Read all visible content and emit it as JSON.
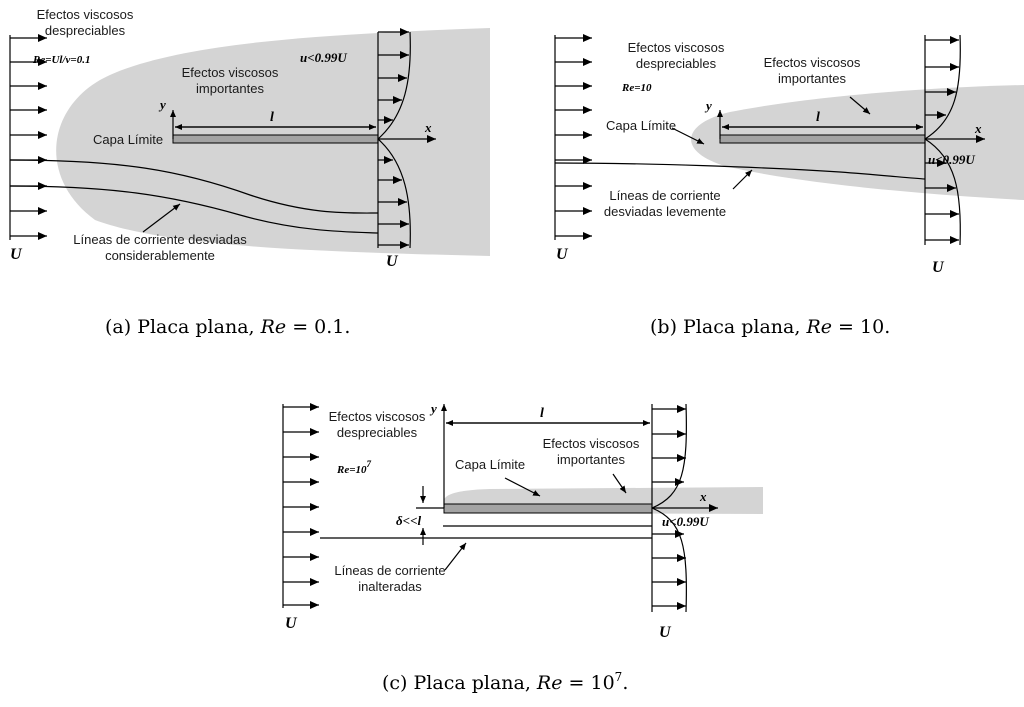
{
  "panel_a": {
    "label_negligible_1": "Efectos viscosos",
    "label_negligible_2": "despreciables",
    "re_text": "Re=Ul/ν=0.1",
    "label_important_1": "Efectos viscosos",
    "label_important_2": "importantes",
    "u_condition": "u<0.99U",
    "boundary_layer": "Capa Límite",
    "streamlines_1": "Líneas de corriente desviadas",
    "streamlines_2": "considerablemente",
    "axis_y": "y",
    "axis_x": "x",
    "length": "l",
    "freestream_left": "U",
    "freestream_right": "U",
    "caption_prefix": "(a) Placa plana,",
    "caption_var": "Re",
    "caption_value": " = 0.1."
  },
  "panel_b": {
    "label_negligible_1": "Efectos viscosos",
    "label_negligible_2": "despreciables",
    "re_text": "Re=10",
    "label_important_1": "Efectos viscosos",
    "label_important_2": "importantes",
    "u_condition": "u<0.99U",
    "boundary_layer": "Capa Límite",
    "streamlines_1": "Líneas de corriente",
    "streamlines_2": "desviadas levemente",
    "axis_y": "y",
    "axis_x": "x",
    "length": "l",
    "freestream_left": "U",
    "freestream_right": "U",
    "caption_prefix": "(b) Placa plana,",
    "caption_var": "Re",
    "caption_value": " = 10."
  },
  "panel_c": {
    "label_negligible_1": "Efectos viscosos",
    "label_negligible_2": "despreciables",
    "re_base": "Re=10",
    "re_exp": "7",
    "label_important_1": "Efectos viscosos",
    "label_important_2": "importantes",
    "boundary_layer": "Capa Límite",
    "delta_text": "δ<<l",
    "u_condition": "u<0.99U",
    "streamlines_1": "Líneas de corriente",
    "streamlines_2": "inalteradas",
    "axis_y": "y",
    "axis_x": "x",
    "length": "l",
    "freestream_left": "U",
    "freestream_right": "U",
    "caption_prefix": "(c) Placa plana,",
    "caption_var": "Re",
    "caption_value": " = 10",
    "caption_exp": "7",
    "caption_end": "."
  },
  "colors": {
    "shade": "#d4d4d4",
    "plate": "#a3a3a3",
    "ink": "#000000"
  }
}
